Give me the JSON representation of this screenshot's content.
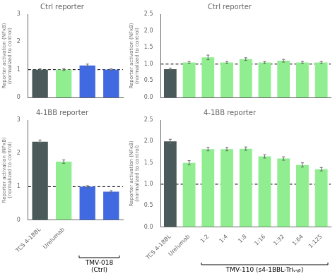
{
  "chart_data": [
    {
      "type": "bar",
      "title": "Ctrl reporter",
      "ylabel": "Reporter activation (NFκB)\n(normalized to control)",
      "categories": [
        null,
        null,
        null,
        null
      ],
      "values": [
        1.0,
        1.0,
        1.15,
        1.0
      ],
      "errors": [
        0.03,
        0.03,
        0.05,
        0.03
      ],
      "colors": [
        "#4a5a5a",
        "#90ee90",
        "#4169e1",
        "#4169e1"
      ],
      "ylim": [
        0,
        3
      ],
      "yticks": [
        0,
        1,
        2,
        3
      ],
      "hline": 1.0,
      "grid": false,
      "tick_labels": "y"
    },
    {
      "type": "bar",
      "title": "4-1BB reporter",
      "ylabel": "Reporter activation (NFκB)\n(normalized to control)",
      "categories": [
        "TCS 4-1BBL",
        "Urelumab",
        null,
        null
      ],
      "values": [
        2.35,
        1.75,
        1.0,
        0.85
      ],
      "errors": [
        0.05,
        0.05,
        0.03,
        0.03
      ],
      "colors": [
        "#4a5a5a",
        "#90ee90",
        "#4169e1",
        "#4169e1"
      ],
      "ylim": [
        0,
        3
      ],
      "yticks": [
        0,
        1,
        2,
        3
      ],
      "hline": 1.0,
      "grid": false,
      "annotations": [
        "TMV-018\n(Ctrl)"
      ]
    },
    {
      "type": "bar",
      "title": "Ctrl reporter",
      "ylabel": "Reporter activation (NFκB)\n(normalized to control)",
      "categories": [
        null,
        null,
        null,
        null,
        null,
        null,
        null,
        null,
        null
      ],
      "values": [
        0.85,
        1.05,
        1.2,
        1.05,
        1.15,
        1.05,
        1.1,
        1.05,
        1.05
      ],
      "errors": [
        0.03,
        0.03,
        0.07,
        0.03,
        0.04,
        0.03,
        0.04,
        0.03,
        0.03
      ],
      "colors": [
        "#4a5a5a",
        "#90ee90",
        "#90ee90",
        "#90ee90",
        "#90ee90",
        "#90ee90",
        "#90ee90",
        "#90ee90",
        "#90ee90"
      ],
      "ylim": [
        0,
        2.5
      ],
      "yticks": [
        {
          "value": 0,
          "label": "0.0"
        },
        {
          "value": 0.5,
          "label": "0.5"
        },
        {
          "value": 1,
          "label": "1.0"
        },
        {
          "value": 1.5,
          "label": "1.5"
        },
        {
          "value": 2,
          "label": "2.0"
        },
        {
          "value": 2.5,
          "label": "2.5"
        }
      ],
      "hline": 1.0,
      "grid": false,
      "tick_labels": "y"
    },
    {
      "type": "bar",
      "title": "4-1BB reporter",
      "ylabel": "Reporter activation (NFκB)\n(normalized to control)",
      "categories": [
        "TCS 4-1BBL",
        "Urelumab",
        "1:2",
        "1:4",
        "1:8",
        "1:16",
        "1:32",
        "1:64",
        "1:125"
      ],
      "values": [
        2.0,
        1.5,
        1.82,
        1.82,
        1.83,
        1.65,
        1.6,
        1.45,
        1.35
      ],
      "errors": [
        0.05,
        0.05,
        0.04,
        0.04,
        0.04,
        0.04,
        0.04,
        0.05,
        0.04
      ],
      "colors": [
        "#4a5a5a",
        "#90ee90",
        "#90ee90",
        "#90ee90",
        "#90ee90",
        "#90ee90",
        "#90ee90",
        "#90ee90",
        "#90ee90"
      ],
      "ylim": [
        0,
        2.5
      ],
      "yticks": [
        {
          "value": 0,
          "label": "0.0"
        },
        {
          "value": 0.5,
          "label": "0.5"
        },
        {
          "value": 1,
          "label": "1.0"
        },
        {
          "value": 1.5,
          "label": "1.5"
        },
        {
          "value": 2,
          "label": "2.0"
        },
        {
          "value": 2.5,
          "label": "2.5"
        }
      ],
      "hline": 1.0,
      "grid": false,
      "annotations": [
        "TMV-110 (s4-1BBL-Triᵥᵧᵦ)"
      ]
    }
  ]
}
